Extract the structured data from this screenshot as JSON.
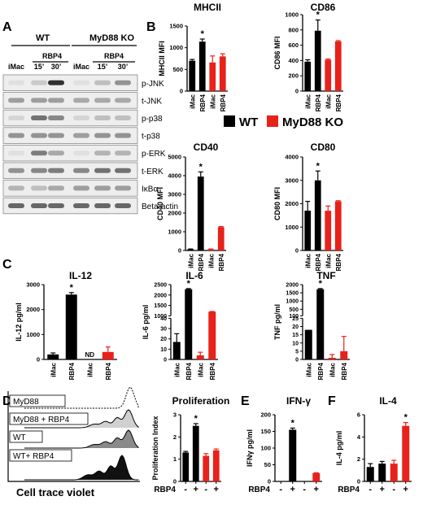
{
  "colors": {
    "wt": "#000000",
    "ko": "#e8211b",
    "ko_light": "#f08a86"
  },
  "panel_letters": [
    "A",
    "B",
    "C",
    "D",
    "E",
    "F"
  ],
  "legend": {
    "wt": "WT",
    "ko": "MyD88 KO"
  },
  "western": {
    "group_wt": "WT",
    "group_ko": "MyD88 KO",
    "rbp4_wt": "RBP4",
    "rbp4_ko": "RBP4",
    "lanes": [
      "iMac",
      "15’",
      "30’",
      "iMac",
      "15’",
      "30’"
    ],
    "bands": [
      "p-JNK",
      "t-JNK",
      "p-p38",
      "t-p38",
      "p-ERK",
      "t-ERK",
      "IκBα",
      "Beta-actin"
    ]
  },
  "flow": {
    "rows": [
      "MyD88",
      "MyD88 + RBP4",
      "WT",
      "WT+ RBP4"
    ],
    "xlabel": "Cell trace violet"
  },
  "chart_data": [
    {
      "id": "mhcii",
      "type": "bar",
      "title": "MHCII",
      "ylabel": "MHCII MFI",
      "ylim": [
        0,
        1500
      ],
      "ticks": [
        0,
        500,
        1000,
        1500
      ],
      "categories": [
        "iMac",
        "RBP4",
        "iMac",
        "RBP4"
      ],
      "values": [
        700,
        1140,
        660,
        800
      ],
      "errors": [
        30,
        60,
        150,
        60
      ],
      "groups": [
        "wt",
        "wt",
        "ko",
        "ko"
      ],
      "stars": [
        1
      ]
    },
    {
      "id": "cd86",
      "type": "bar",
      "title": "CD86",
      "ylabel": "CD86 MFI",
      "ylim": [
        0,
        1000
      ],
      "ticks": [
        0,
        200,
        400,
        600,
        800,
        1000
      ],
      "categories": [
        "iMac",
        "RBP4",
        "iMac",
        "RBP4"
      ],
      "values": [
        385,
        790,
        410,
        650
      ],
      "errors": [
        25,
        140,
        10,
        10
      ],
      "groups": [
        "wt",
        "wt",
        "ko",
        "ko"
      ],
      "stars": [
        1
      ]
    },
    {
      "id": "cd40",
      "type": "bar",
      "title": "CD40",
      "ylabel": "CD40 MFI",
      "ylim": [
        0,
        5000
      ],
      "ticks": [
        0,
        1000,
        2000,
        3000,
        4000,
        5000
      ],
      "categories": [
        "iMac",
        "RBP4",
        "iMac",
        "RBP4"
      ],
      "values": [
        60,
        3950,
        60,
        1250
      ],
      "errors": [
        20,
        250,
        20,
        30
      ],
      "groups": [
        "wt",
        "wt",
        "ko",
        "ko"
      ],
      "stars": [
        1
      ]
    },
    {
      "id": "cd80",
      "type": "bar",
      "title": "CD80",
      "ylabel": "CD80 MFI",
      "ylim": [
        0,
        4000
      ],
      "ticks": [
        0,
        1000,
        2000,
        3000,
        4000
      ],
      "categories": [
        "iMac",
        "RBP4",
        "iMac",
        "RBP4"
      ],
      "values": [
        1700,
        3000,
        1700,
        2100
      ],
      "errors": [
        400,
        400,
        200,
        30
      ],
      "groups": [
        "wt",
        "wt",
        "ko",
        "ko"
      ],
      "stars": [
        1
      ]
    },
    {
      "id": "il12",
      "type": "bar",
      "title": "IL-12",
      "ylabel": "IL-12 pg/ml",
      "ylim": [
        0,
        3000
      ],
      "ticks": [
        0,
        1000,
        2000,
        3000
      ],
      "categories": [
        "iMac",
        "RBP4",
        "iMac",
        "RBP4"
      ],
      "values": [
        200,
        2600,
        0,
        300
      ],
      "errors": [
        60,
        80,
        0,
        200
      ],
      "groups": [
        "wt",
        "wt",
        "ko",
        "ko"
      ],
      "stars": [
        1
      ],
      "nd_label": "ND",
      "nd_index": 2
    },
    {
      "id": "il6",
      "type": "bar",
      "title": "IL-6",
      "ylabel": "IL-6 pg/ml",
      "broken": true,
      "lower_range": [
        0,
        40
      ],
      "upper_range": [
        1000,
        2500
      ],
      "ticks_lower": [
        0,
        10,
        20,
        30,
        40
      ],
      "ticks_upper": [
        1000,
        1500,
        2000,
        2500
      ],
      "categories": [
        "iMac",
        "RBP4",
        "iMac",
        "RBP4"
      ],
      "values": [
        17,
        2280,
        4,
        1200
      ],
      "errors": [
        8,
        30,
        3,
        10
      ],
      "groups": [
        "wt",
        "wt",
        "ko",
        "ko"
      ],
      "stars": [
        1
      ]
    },
    {
      "id": "tnf",
      "type": "bar",
      "title": "TNF",
      "ylabel": "TNF pg/ml",
      "broken": true,
      "lower_range": [
        0,
        25
      ],
      "upper_range": [
        100,
        2000
      ],
      "ticks_lower": [
        0,
        5,
        10,
        15,
        20,
        25
      ],
      "ticks_upper": [
        100,
        500,
        1000,
        1500,
        2000
      ],
      "categories": [
        "iMac",
        "RBP4",
        "iMac",
        "RBP4"
      ],
      "values": [
        18,
        1720,
        1,
        5
      ],
      "errors": [
        0,
        40,
        2,
        9
      ],
      "groups": [
        "wt",
        "wt",
        "ko",
        "ko"
      ],
      "stars": [
        1
      ]
    },
    {
      "id": "prolif",
      "type": "bar",
      "title": "Proliferation",
      "ylabel": "Proliferation Index",
      "ylim": [
        0,
        3
      ],
      "ticks": [
        0,
        1,
        2,
        3
      ],
      "xprefix": "RBP4",
      "categories": [
        "-",
        "+",
        "-",
        "+"
      ],
      "values": [
        1.3,
        2.5,
        1.15,
        1.4
      ],
      "errors": [
        0.05,
        0.1,
        0.1,
        0.06
      ],
      "groups": [
        "wt",
        "wt",
        "ko",
        "ko"
      ],
      "stars": [
        1
      ]
    },
    {
      "id": "ifng",
      "type": "bar",
      "title": "IFN-γ",
      "ylabel": "IFNγ pg/ml",
      "ylim": [
        0,
        200
      ],
      "ticks": [
        0,
        50,
        100,
        150,
        200
      ],
      "xprefix": "RBP4",
      "categories": [
        "-",
        "+",
        "-",
        "+"
      ],
      "values": [
        0,
        155,
        0,
        25
      ],
      "errors": [
        0,
        5,
        0,
        1
      ],
      "groups": [
        "wt",
        "wt",
        "ko",
        "ko"
      ],
      "stars": [
        1
      ]
    },
    {
      "id": "il4",
      "type": "bar",
      "title": "IL-4",
      "ylabel": "IL-4 pg/ml",
      "ylim": [
        0,
        6
      ],
      "ticks": [
        0,
        2,
        4,
        6
      ],
      "xprefix": "RBP4",
      "categories": [
        "-",
        "+",
        "-",
        "+"
      ],
      "values": [
        1.3,
        1.6,
        1.6,
        5.0
      ],
      "errors": [
        0.3,
        0.2,
        0.3,
        0.3
      ],
      "groups": [
        "wt",
        "wt",
        "ko",
        "ko"
      ],
      "stars": [
        3
      ]
    }
  ]
}
